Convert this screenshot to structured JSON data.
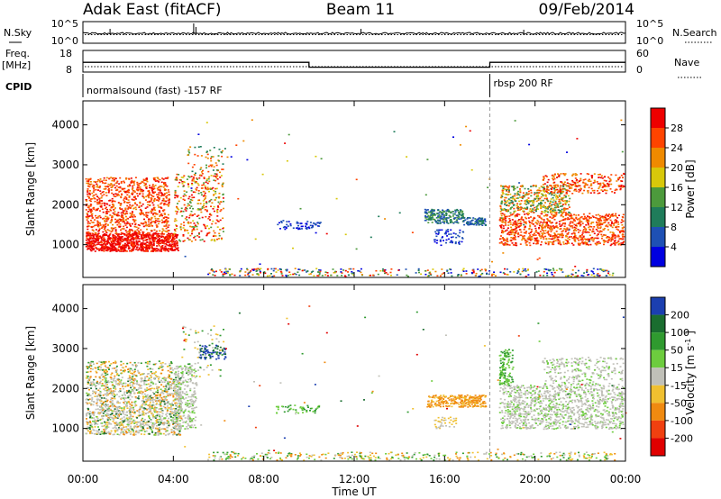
{
  "header": {
    "station": "Adak East (fitACF)",
    "beam": "Beam 11",
    "date": "09/Feb/2014"
  },
  "panels": {
    "nsky": {
      "label": "N.Sky",
      "right_label": "N.Search",
      "ticks": [
        "10^5",
        "10^0"
      ],
      "right_ticks": [
        "10^5",
        "10^0"
      ]
    },
    "freq": {
      "label_line1": "Freq.",
      "label_line2": "[MHz]",
      "ticks": [
        "18",
        "8"
      ],
      "right_label": "Nave",
      "right_ticks": [
        "60",
        "0"
      ]
    },
    "cpid": {
      "label": "CPID",
      "program_1": "normalsound (fast) -157 RF",
      "program_2": "rbsp 200 RF"
    }
  },
  "chart_data": {
    "type": "heatmap",
    "xlabel": "Time UT",
    "x_ticks": [
      "00:00",
      "04:00",
      "08:00",
      "12:00",
      "16:00",
      "20:00",
      "00:00"
    ],
    "x_tick_hours": [
      0,
      4,
      8,
      12,
      16,
      20,
      24
    ],
    "xlim_hours": [
      0,
      24
    ],
    "ylabel": "Slant Range [km]",
    "ylim_km": [
      180,
      4600
    ],
    "y_ticks": [
      1000,
      2000,
      3000,
      4000
    ],
    "program_change_hour": 18.0,
    "freq_series_mhz": [
      {
        "from_hour": 0,
        "to_hour": 10.0,
        "value": 14
      },
      {
        "from_hour": 10.0,
        "to_hour": 18.0,
        "value": 11
      },
      {
        "from_hour": 18.0,
        "to_hour": 24,
        "value": 14
      }
    ],
    "power": {
      "colorbar_label": "Power [dB]",
      "ticks": [
        4,
        8,
        12,
        16,
        20,
        24,
        28
      ],
      "colors": [
        "#0000e0",
        "#1e50b4",
        "#1f7c5a",
        "#4c9a3c",
        "#d8c80a",
        "#ef8a00",
        "#ff4400",
        "#ee0000"
      ]
    },
    "velocity": {
      "colorbar_label": "Velocity [m s^-1]",
      "ticks": [
        200,
        100,
        50,
        15,
        -15,
        -50,
        -100,
        -200
      ],
      "colors": [
        "#1b3fb0",
        "#1a6d2f",
        "#2f9a2f",
        "#6dcc3e",
        "#c0c0b8",
        "#f0c030",
        "#f08a10",
        "#f04010",
        "#e00000"
      ]
    }
  }
}
